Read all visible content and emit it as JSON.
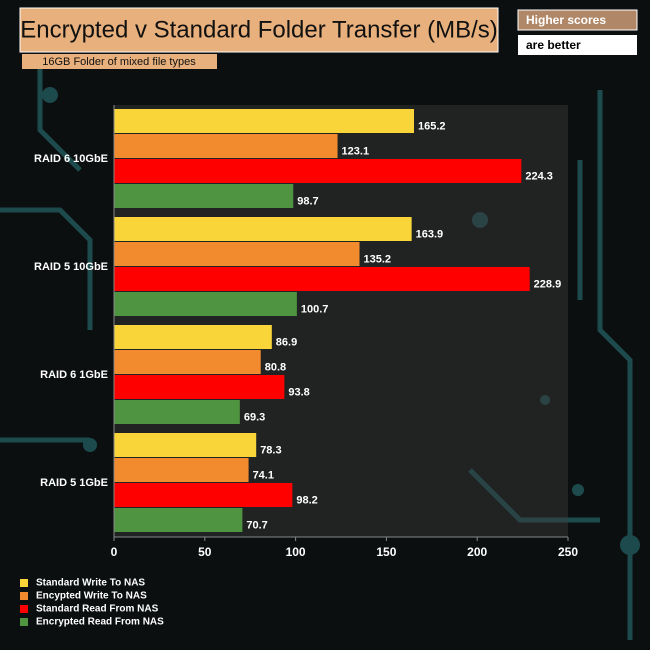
{
  "chart_data": {
    "type": "hbar",
    "title": "Encrypted v Standard Folder Transfer (MB/s)",
    "subtitle": "16GB Folder of mixed file types",
    "note": [
      "Higher scores",
      "are better"
    ],
    "categories": [
      "RAID 6 10GbE",
      "RAID 5 10GbE",
      "RAID 6 1GbE",
      "RAID 5 1GbE"
    ],
    "series": [
      {
        "name": "Standard Write To NAS",
        "color": "#f9d53a",
        "values": [
          165.2,
          163.9,
          86.9,
          78.3
        ]
      },
      {
        "name": "Encypted Write To NAS",
        "color": "#f28a2e",
        "values": [
          123.1,
          135.2,
          80.8,
          74.1
        ]
      },
      {
        "name": "Standard Read From NAS",
        "color": "#ff0000",
        "values": [
          224.3,
          228.9,
          93.8,
          98.2
        ]
      },
      {
        "name": "Encrypted Read From NAS",
        "color": "#4f9440",
        "values": [
          98.7,
          100.7,
          69.3,
          70.7
        ]
      }
    ],
    "xlim": [
      0,
      250
    ],
    "xticks": [
      0,
      50,
      100,
      150,
      200,
      250
    ]
  }
}
